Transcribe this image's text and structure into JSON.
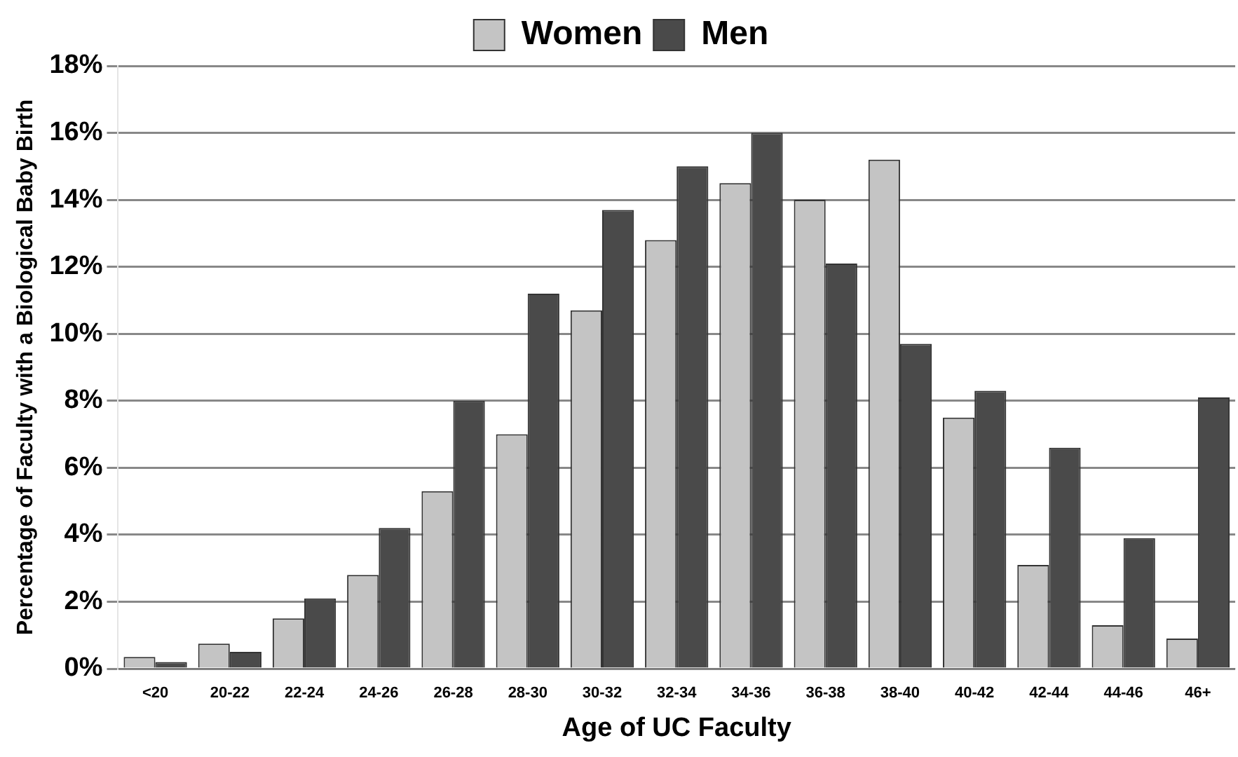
{
  "chart_data": {
    "type": "bar",
    "xlabel": "Age of UC Faculty",
    "ylabel": "Percentage of Faculty with a Biological Baby Birth",
    "categories": [
      "<20",
      "20-22",
      "22-24",
      "24-26",
      "26-28",
      "28-30",
      "30-32",
      "32-34",
      "34-36",
      "36-38",
      "38-40",
      "40-42",
      "42-44",
      "44-46",
      "46+"
    ],
    "series": [
      {
        "name": "Women",
        "color": "#c4c4c4",
        "values": [
          0.35,
          0.75,
          1.5,
          2.8,
          5.3,
          7.0,
          10.7,
          12.8,
          14.5,
          14.0,
          15.2,
          7.5,
          3.1,
          1.3,
          0.9
        ]
      },
      {
        "name": "Men",
        "color": "#4a4a4a",
        "values": [
          0.2,
          0.5,
          2.1,
          4.2,
          8.0,
          11.2,
          13.7,
          15.0,
          16.0,
          12.1,
          9.7,
          8.3,
          6.6,
          3.9,
          8.1
        ]
      }
    ],
    "ylim": [
      0,
      18
    ],
    "yticks": [
      {
        "value": 0,
        "label": "0%"
      },
      {
        "value": 2,
        "label": "2%"
      },
      {
        "value": 4,
        "label": "4%"
      },
      {
        "value": 6,
        "label": "6%"
      },
      {
        "value": 8,
        "label": "8%"
      },
      {
        "value": 10,
        "label": "10%"
      },
      {
        "value": 12,
        "label": "12%"
      },
      {
        "value": 14,
        "label": "14%"
      },
      {
        "value": 16,
        "label": "16%"
      },
      {
        "value": 18,
        "label": "18%"
      }
    ],
    "grid": "y",
    "legend": "top"
  }
}
